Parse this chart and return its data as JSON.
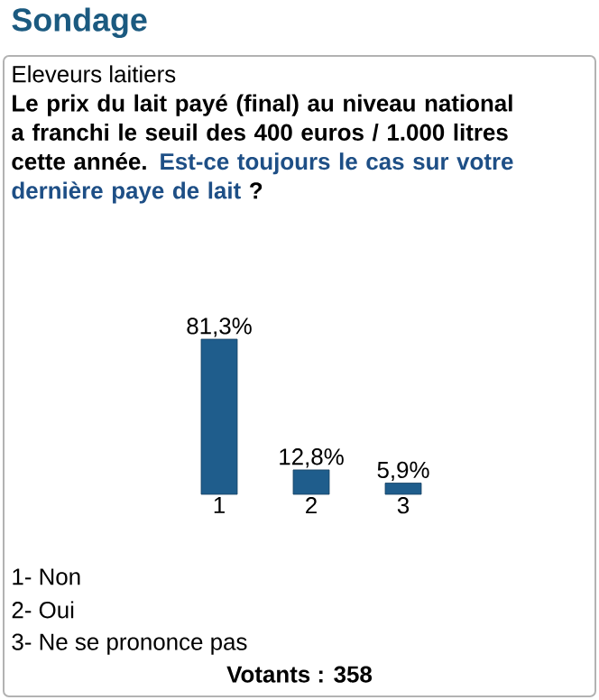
{
  "chart_data": {
    "type": "bar",
    "title": "Sondage",
    "subtitle": "Eleveurs laitiers",
    "annotations": [
      "Le prix du lait payé (final) au niveau national a franchi le seuil des 400 euros / 1.000 litres cette année.",
      "Est-ce toujours le cas sur votre dernière paye de lait",
      "?",
      "1- Non",
      "2- Oui",
      "3- Ne se prononce pas",
      "Votants : 358"
    ],
    "categories": [
      "1",
      "2",
      "3"
    ],
    "values": [
      81.3,
      12.8,
      5.9
    ],
    "value_labels": [
      "81,3%",
      "12,8%",
      "5,9%"
    ],
    "color": "#1f5d8c"
  }
}
